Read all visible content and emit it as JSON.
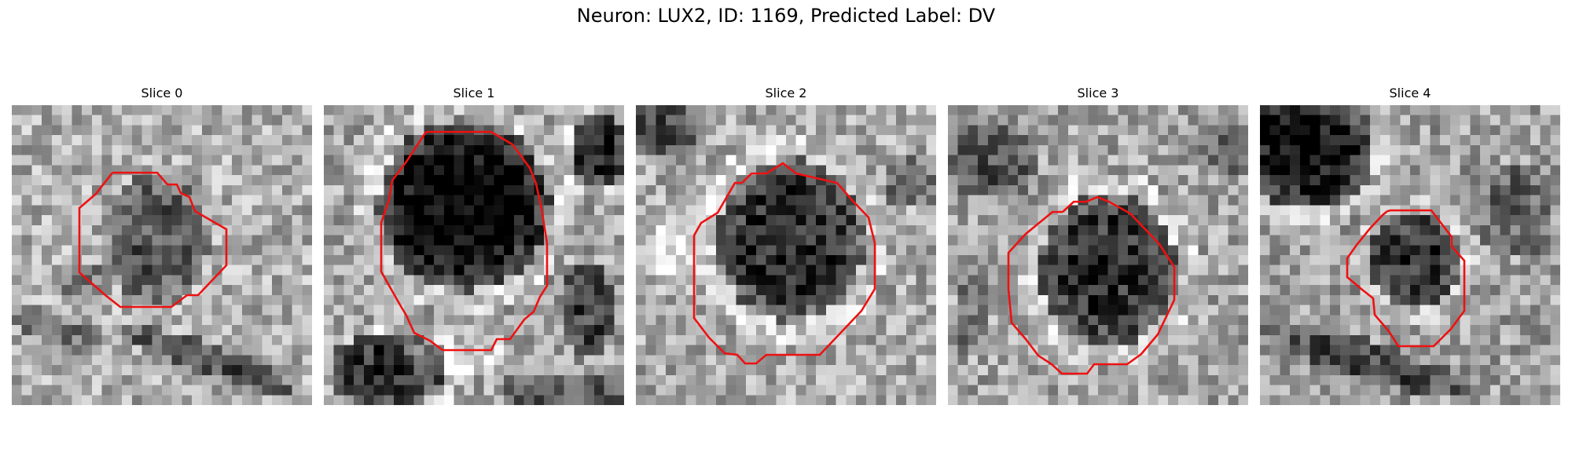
{
  "figure": {
    "title": "Neuron: LUX2, ID: 1169, Predicted Label: DV",
    "contour_color": "#ee1111"
  },
  "slices": [
    {
      "label": "Slice 0"
    },
    {
      "label": "Slice 1"
    },
    {
      "label": "Slice 2"
    },
    {
      "label": "Slice 3"
    },
    {
      "label": "Slice 4"
    }
  ]
}
